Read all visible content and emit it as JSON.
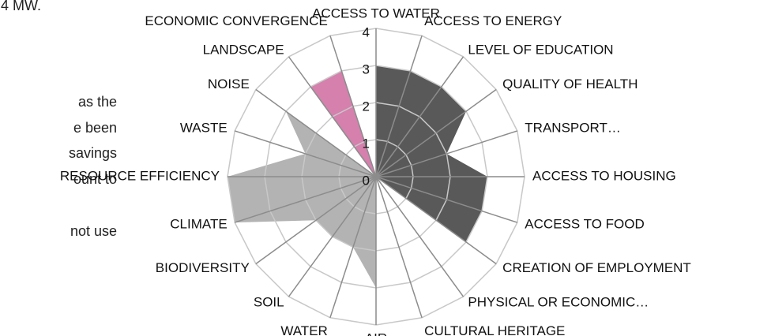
{
  "page_text": [
    "4 MW.",
    "as the",
    "e been",
    "savings",
    "ount to",
    "not use"
  ],
  "chart_data": {
    "type": "radar",
    "categories": [
      "ACCESS TO WATER",
      "ACCESS TO ENERGY",
      "LEVEL OF EDUCATION",
      "QUALITY OF HEALTH",
      "TRANSPORT…",
      "ACCESS TO HOUSING",
      "ACCESS TO FOOD",
      "CREATION OF EMPLOYMENT",
      "PHYSICAL OR ECONOMIC…",
      "CULTURAL HERITAGE",
      "AIR",
      "WATER",
      "SOIL",
      "BIODIVERSITY",
      "CLIMATE",
      "RESOURCE EFFICIENCY",
      "WASTE",
      "NOISE",
      "LANDSCAPE",
      "ECONOMIC CONVERGENCE"
    ],
    "series": [
      {
        "color": "#595959",
        "values": [
          3,
          3,
          3,
          3,
          2,
          3,
          3,
          3,
          0,
          0,
          0,
          0,
          0,
          0,
          0,
          0,
          0,
          0,
          0,
          0
        ]
      },
      {
        "color": "#b3b3b3",
        "values": [
          0,
          0,
          0,
          0,
          0,
          0,
          0,
          0,
          0,
          0,
          3,
          2,
          2,
          2,
          4,
          4,
          2,
          3,
          0,
          0
        ]
      },
      {
        "color": "#d580ad",
        "values": [
          0,
          0,
          0,
          0,
          0,
          0,
          0,
          0,
          0,
          0,
          0,
          0,
          0,
          0,
          0,
          0,
          0,
          0,
          3,
          3
        ]
      }
    ],
    "ylim": [
      0,
      4
    ],
    "yticks": [
      0,
      1,
      2,
      3,
      4
    ],
    "grid": true
  }
}
